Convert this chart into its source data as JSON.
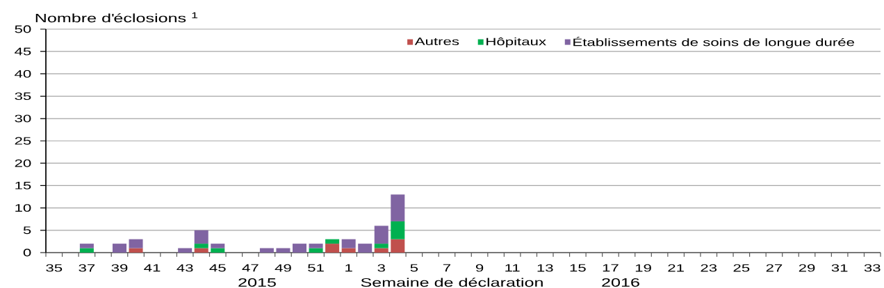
{
  "chart_data": {
    "type": "bar",
    "stacked": true,
    "ylabel": "Nombre d'éclosions $^{1}$",
    "xlabel": "Semaine de déclaration",
    "categories": [
      "35",
      null,
      "37",
      null,
      "39",
      null,
      "41",
      null,
      "43",
      null,
      "45",
      null,
      "47",
      null,
      "49",
      null,
      "51",
      null,
      "1",
      null,
      "3",
      null,
      "5",
      null,
      "7",
      null,
      "9",
      null,
      "11",
      null,
      "13",
      null,
      "15",
      null,
      "17",
      null,
      "19",
      null,
      "21",
      null,
      "23",
      null,
      "25",
      null,
      "27",
      null,
      "29",
      null,
      "31",
      null,
      "33"
    ],
    "series": [
      {
        "name": "Autres",
        "color": "#c0504d",
        "values": [
          0,
          0,
          0,
          0,
          0,
          1,
          0,
          0,
          0,
          1,
          0,
          0,
          0,
          0,
          0,
          0,
          0,
          2,
          1,
          0,
          1,
          3,
          0,
          0,
          0,
          0,
          0,
          0,
          0,
          0,
          0,
          0,
          0,
          0,
          0,
          0,
          0,
          0,
          0,
          0,
          0,
          0,
          0,
          0,
          0,
          0,
          0,
          0,
          0,
          0,
          0
        ]
      },
      {
        "name": "Hôpitaux",
        "color": "#00b050",
        "values": [
          0,
          0,
          1,
          0,
          0,
          0,
          0,
          0,
          0,
          1,
          1,
          0,
          0,
          0,
          0,
          0,
          1,
          1,
          0,
          0,
          1,
          4,
          0,
          0,
          0,
          0,
          0,
          0,
          0,
          0,
          0,
          0,
          0,
          0,
          0,
          0,
          0,
          0,
          0,
          0,
          0,
          0,
          0,
          0,
          0,
          0,
          0,
          0,
          0,
          0,
          0
        ]
      },
      {
        "name": "Établissements de soins de longue durée",
        "color": "#8064a2",
        "values": [
          0,
          0,
          1,
          0,
          2,
          2,
          0,
          0,
          1,
          3,
          1,
          0,
          0,
          1,
          1,
          2,
          1,
          0,
          2,
          2,
          4,
          6,
          0,
          0,
          0,
          0,
          0,
          0,
          0,
          0,
          0,
          0,
          0,
          0,
          0,
          0,
          0,
          0,
          0,
          0,
          0,
          0,
          0,
          0,
          0,
          0,
          0,
          0,
          0,
          0,
          0
        ]
      }
    ],
    "ylim": [
      0,
      50
    ],
    "yticks": [
      0,
      5,
      10,
      15,
      20,
      25,
      30,
      35,
      40,
      45,
      50
    ],
    "grid": "y",
    "legend": "top right",
    "annotations": [
      "2015",
      "2016"
    ]
  }
}
